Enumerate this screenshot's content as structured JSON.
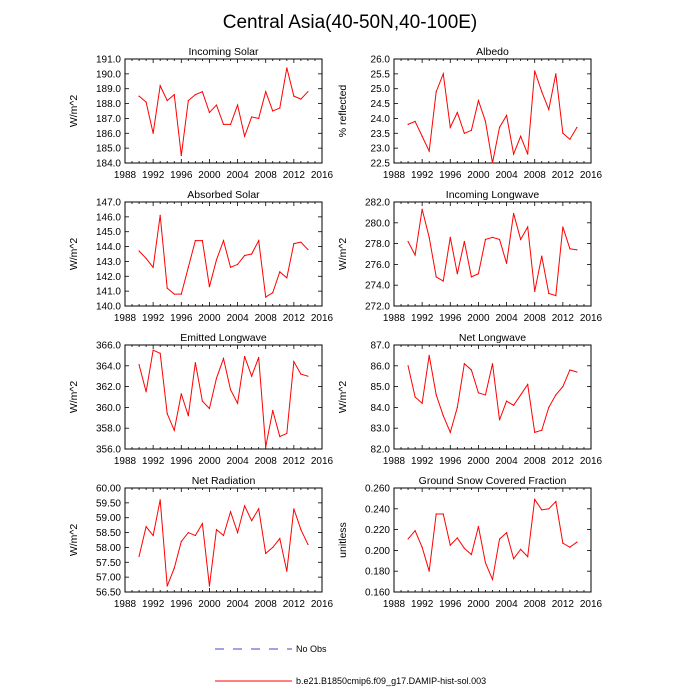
{
  "figure": {
    "title": "Central Asia(40-50N,40-100E)",
    "colors": {
      "model": "#ff0000",
      "obs": "#4444cc",
      "axis": "#000000"
    },
    "legend": {
      "obs_label": "No Obs",
      "model_label": "b.e21.B1850cmip6.f09_g17.DAMIP-hist-sol.003"
    }
  },
  "chart_data": [
    {
      "type": "line",
      "title": "Incoming Solar",
      "ylabel": "W/m^2",
      "xlim": [
        1988,
        2016
      ],
      "x_ticks": [
        "1988",
        "1992",
        "1996",
        "2000",
        "2004",
        "2008",
        "2012",
        "2016"
      ],
      "ylim": [
        184.0,
        191.0
      ],
      "y_ticks": [
        "184.0",
        "185.0",
        "186.0",
        "187.0",
        "188.0",
        "189.0",
        "190.0",
        "191.0"
      ],
      "series": [
        {
          "x": [
            1990,
            1991,
            1992,
            1993,
            1994,
            1995,
            1996,
            1997,
            1998,
            1999,
            2000,
            2001,
            2002,
            2003,
            2004,
            2005,
            2006,
            2007,
            2008,
            2009,
            2010,
            2011,
            2012,
            2013,
            2014
          ],
          "values": [
            188.5,
            188.1,
            186.0,
            189.2,
            188.2,
            188.6,
            184.5,
            188.2,
            188.6,
            188.8,
            187.4,
            187.9,
            186.6,
            186.6,
            187.9,
            185.8,
            187.1,
            187.0,
            188.8,
            187.5,
            187.7,
            190.4,
            188.5,
            188.3,
            188.8
          ]
        }
      ]
    },
    {
      "type": "line",
      "title": "Albedo",
      "ylabel": "% reflected",
      "xlim": [
        1988,
        2016
      ],
      "x_ticks": [
        "1988",
        "1992",
        "1996",
        "2000",
        "2004",
        "2008",
        "2012",
        "2016"
      ],
      "ylim": [
        22.5,
        26.0
      ],
      "y_ticks": [
        "22.5",
        "23.0",
        "23.5",
        "24.0",
        "24.5",
        "25.0",
        "25.5",
        "26.0"
      ],
      "series": [
        {
          "x": [
            1990,
            1991,
            1992,
            1993,
            1994,
            1995,
            1996,
            1997,
            1998,
            1999,
            2000,
            2001,
            2002,
            2003,
            2004,
            2005,
            2006,
            2007,
            2008,
            2009,
            2010,
            2011,
            2012,
            2013,
            2014
          ],
          "values": [
            23.8,
            23.9,
            23.4,
            22.9,
            24.9,
            25.5,
            23.7,
            24.2,
            23.5,
            23.6,
            24.6,
            23.9,
            22.5,
            23.7,
            24.1,
            22.8,
            23.4,
            22.8,
            25.6,
            24.9,
            24.3,
            25.5,
            23.5,
            23.3,
            23.7
          ]
        }
      ]
    },
    {
      "type": "line",
      "title": "Absorbed Solar",
      "ylabel": "W/m^2",
      "xlim": [
        1988,
        2016
      ],
      "x_ticks": [
        "1988",
        "1992",
        "1996",
        "2000",
        "2004",
        "2008",
        "2012",
        "2016"
      ],
      "ylim": [
        140.0,
        147.0
      ],
      "y_ticks": [
        "140.0",
        "141.0",
        "142.0",
        "143.0",
        "144.0",
        "145.0",
        "146.0",
        "147.0"
      ],
      "series": [
        {
          "x": [
            1990,
            1991,
            1992,
            1993,
            1994,
            1995,
            1996,
            1997,
            1998,
            1999,
            2000,
            2001,
            2002,
            2003,
            2004,
            2005,
            2006,
            2007,
            2008,
            2009,
            2010,
            2011,
            2012,
            2013,
            2014
          ],
          "values": [
            143.7,
            143.2,
            142.6,
            146.1,
            141.2,
            140.8,
            140.8,
            142.6,
            144.4,
            144.4,
            141.3,
            143.1,
            144.4,
            142.6,
            142.8,
            143.4,
            143.5,
            144.4,
            140.6,
            140.9,
            142.3,
            141.9,
            144.2,
            144.3,
            143.8
          ]
        }
      ]
    },
    {
      "type": "line",
      "title": "Incoming Longwave",
      "ylabel": "W/m^2",
      "xlim": [
        1988,
        2016
      ],
      "x_ticks": [
        "1988",
        "1992",
        "1996",
        "2000",
        "2004",
        "2008",
        "2012",
        "2016"
      ],
      "ylim": [
        272.0,
        282.0
      ],
      "y_ticks": [
        "272.0",
        "274.0",
        "276.0",
        "278.0",
        "280.0",
        "282.0"
      ],
      "series": [
        {
          "x": [
            1990,
            1991,
            1992,
            1993,
            1994,
            1995,
            1996,
            1997,
            1998,
            1999,
            2000,
            2001,
            2002,
            2003,
            2004,
            2005,
            2006,
            2007,
            2008,
            2009,
            2010,
            2011,
            2012,
            2013,
            2014
          ],
          "values": [
            278.2,
            276.9,
            281.3,
            278.6,
            274.8,
            274.4,
            278.6,
            275.1,
            278.2,
            274.8,
            275.1,
            278.4,
            278.6,
            278.4,
            276.1,
            280.9,
            278.4,
            279.6,
            273.4,
            276.8,
            273.2,
            273.0,
            279.6,
            277.5,
            277.4
          ]
        }
      ]
    },
    {
      "type": "line",
      "title": "Emitted Longwave",
      "ylabel": "W/m^2",
      "xlim": [
        1988,
        2016
      ],
      "x_ticks": [
        "1988",
        "1992",
        "1996",
        "2000",
        "2004",
        "2008",
        "2012",
        "2016"
      ],
      "ylim": [
        356.0,
        366.0
      ],
      "y_ticks": [
        "356.0",
        "358.0",
        "360.0",
        "362.0",
        "364.0",
        "366.0"
      ],
      "series": [
        {
          "x": [
            1990,
            1991,
            1992,
            1993,
            1994,
            1995,
            1996,
            1997,
            1998,
            1999,
            2000,
            2001,
            2002,
            2003,
            2004,
            2005,
            2006,
            2007,
            2008,
            2009,
            2010,
            2011,
            2012,
            2013,
            2014
          ],
          "values": [
            364.1,
            361.5,
            365.5,
            365.2,
            359.4,
            357.8,
            361.3,
            359.2,
            364.3,
            360.6,
            359.9,
            362.8,
            364.7,
            361.7,
            360.4,
            364.9,
            363.0,
            364.8,
            356.2,
            359.7,
            357.2,
            357.5,
            364.4,
            363.2,
            363.0
          ]
        }
      ]
    },
    {
      "type": "line",
      "title": "Net Longwave",
      "ylabel": "W/m^2",
      "xlim": [
        1988,
        2016
      ],
      "x_ticks": [
        "1988",
        "1992",
        "1996",
        "2000",
        "2004",
        "2008",
        "2012",
        "2016"
      ],
      "ylim": [
        82.0,
        87.0
      ],
      "y_ticks": [
        "82.0",
        "83.0",
        "84.0",
        "85.0",
        "86.0",
        "87.0"
      ],
      "series": [
        {
          "x": [
            1990,
            1991,
            1992,
            1993,
            1994,
            1995,
            1996,
            1997,
            1998,
            1999,
            2000,
            2001,
            2002,
            2003,
            2004,
            2005,
            2006,
            2007,
            2008,
            2009,
            2010,
            2011,
            2012,
            2013,
            2014
          ],
          "values": [
            86.0,
            84.5,
            84.2,
            86.5,
            84.6,
            83.6,
            82.8,
            84.0,
            86.1,
            85.8,
            84.7,
            84.6,
            86.1,
            83.4,
            84.3,
            84.1,
            84.6,
            85.1,
            82.8,
            82.9,
            84.0,
            84.6,
            85.0,
            85.8,
            85.7
          ]
        }
      ]
    },
    {
      "type": "line",
      "title": "Net Radiation",
      "ylabel": "W/m^2",
      "xlim": [
        1988,
        2016
      ],
      "x_ticks": [
        "1988",
        "1992",
        "1996",
        "2000",
        "2004",
        "2008",
        "2012",
        "2016"
      ],
      "ylim": [
        56.5,
        60.0
      ],
      "y_ticks": [
        "56.50",
        "57.00",
        "57.50",
        "58.00",
        "58.50",
        "59.00",
        "59.50",
        "60.00"
      ],
      "series": [
        {
          "x": [
            1990,
            1991,
            1992,
            1993,
            1994,
            1995,
            1996,
            1997,
            1998,
            1999,
            2000,
            2001,
            2002,
            2003,
            2004,
            2005,
            2006,
            2007,
            2008,
            2009,
            2010,
            2011,
            2012,
            2013,
            2014
          ],
          "values": [
            57.7,
            58.7,
            58.4,
            59.6,
            56.7,
            57.3,
            58.2,
            58.5,
            58.4,
            58.8,
            56.7,
            58.6,
            58.4,
            59.2,
            58.5,
            59.4,
            58.9,
            59.3,
            57.8,
            58.0,
            58.3,
            57.2,
            59.3,
            58.6,
            58.1
          ]
        }
      ]
    },
    {
      "type": "line",
      "title": "Ground Snow Covered Fraction",
      "ylabel": "unitless",
      "xlim": [
        1988,
        2016
      ],
      "x_ticks": [
        "1988",
        "1992",
        "1996",
        "2000",
        "2004",
        "2008",
        "2012",
        "2016"
      ],
      "ylim": [
        0.16,
        0.26
      ],
      "y_ticks": [
        "0.160",
        "0.180",
        "0.200",
        "0.220",
        "0.240",
        "0.260"
      ],
      "series": [
        {
          "x": [
            1990,
            1991,
            1992,
            1993,
            1994,
            1995,
            1996,
            1997,
            1998,
            1999,
            2000,
            2001,
            2002,
            2003,
            2004,
            2005,
            2006,
            2007,
            2008,
            2009,
            2010,
            2011,
            2012,
            2013,
            2014
          ],
          "values": [
            0.211,
            0.219,
            0.203,
            0.18,
            0.235,
            0.235,
            0.205,
            0.212,
            0.202,
            0.196,
            0.223,
            0.188,
            0.172,
            0.211,
            0.217,
            0.192,
            0.201,
            0.194,
            0.249,
            0.239,
            0.24,
            0.247,
            0.207,
            0.203,
            0.208
          ]
        }
      ]
    }
  ]
}
